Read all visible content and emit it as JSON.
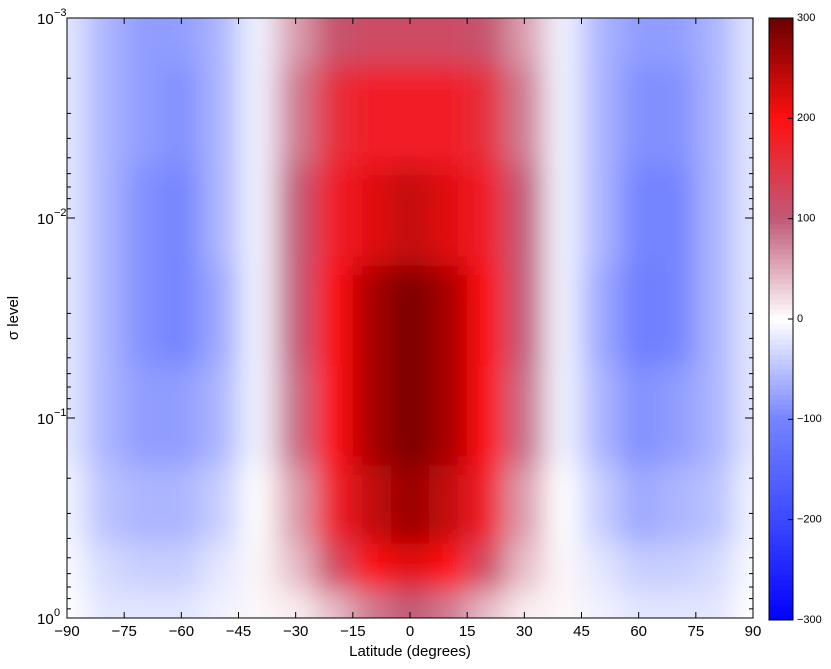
{
  "chart_data": {
    "type": "contour",
    "xlabel": "Latitude (degrees)",
    "ylabel": "σ level",
    "xlim": [
      -90,
      90
    ],
    "xticks": [
      {
        "value": -90,
        "label": "−90"
      },
      {
        "value": -75,
        "label": "−75"
      },
      {
        "value": -60,
        "label": "−60"
      },
      {
        "value": -45,
        "label": "−45"
      },
      {
        "value": -30,
        "label": "−30"
      },
      {
        "value": -15,
        "label": "−15"
      },
      0,
      15,
      30,
      45,
      60,
      75,
      90
    ],
    "ylim": [
      0.001,
      1
    ],
    "yscale": "log",
    "y_inverted": true,
    "yticks": [
      {
        "value": 0.001,
        "label": "10",
        "exponent": "−3"
      },
      {
        "value": 0.01,
        "label": "10",
        "exponent": "−2"
      },
      {
        "value": 0.1,
        "label": "10",
        "exponent": "−1"
      },
      {
        "value": 1,
        "label": "10",
        "exponent": "0"
      }
    ],
    "x": [
      -90,
      -80,
      -70,
      -60,
      -50,
      -40,
      -30,
      -20,
      -10,
      0,
      10,
      20,
      30,
      40,
      50,
      60,
      70,
      80,
      90
    ],
    "y": [
      0.001,
      0.003,
      0.01,
      0.03,
      0.1,
      0.3,
      0.6,
      0.9
    ],
    "z": [
      [
        -20,
        -60,
        -80,
        -80,
        -60,
        -10,
        60,
        110,
        120,
        120,
        120,
        110,
        60,
        -10,
        -60,
        -80,
        -80,
        -60,
        -20
      ],
      [
        -20,
        -60,
        -80,
        -90,
        -60,
        -10,
        80,
        160,
        180,
        180,
        180,
        160,
        80,
        -10,
        -60,
        -90,
        -90,
        -60,
        -20
      ],
      [
        -20,
        -60,
        -90,
        -100,
        -60,
        -10,
        100,
        180,
        220,
        240,
        220,
        180,
        100,
        -10,
        -60,
        -100,
        -100,
        -60,
        -20
      ],
      [
        -20,
        -60,
        -90,
        -100,
        -70,
        -10,
        100,
        200,
        260,
        290,
        260,
        200,
        100,
        -10,
        -70,
        -110,
        -100,
        -60,
        -20
      ],
      [
        -20,
        -60,
        -80,
        -80,
        -60,
        -10,
        90,
        200,
        260,
        290,
        260,
        200,
        90,
        -10,
        -60,
        -90,
        -80,
        -60,
        -20
      ],
      [
        -10,
        -50,
        -60,
        -60,
        -40,
        0,
        60,
        180,
        240,
        270,
        240,
        180,
        60,
        0,
        -40,
        -70,
        -60,
        -50,
        -10
      ],
      [
        -5,
        -30,
        -40,
        -40,
        -20,
        5,
        40,
        120,
        200,
        220,
        200,
        120,
        40,
        5,
        -20,
        -40,
        -40,
        -30,
        -5
      ],
      [
        0,
        -20,
        -20,
        -20,
        -10,
        5,
        10,
        40,
        80,
        100,
        80,
        40,
        10,
        5,
        -10,
        -20,
        -20,
        -20,
        0
      ]
    ],
    "clim": [
      -300,
      300
    ],
    "colorbar_ticks": [
      {
        "value": -300,
        "label": "−300"
      },
      {
        "value": -200,
        "label": "−200"
      },
      {
        "value": -100,
        "label": "−100"
      },
      0,
      100,
      200,
      300
    ],
    "colormap": [
      "#0000ff",
      "#3a4aff",
      "#7484ff",
      "#ffffff",
      "#c05a78",
      "#ff1010",
      "#6a0000"
    ]
  }
}
